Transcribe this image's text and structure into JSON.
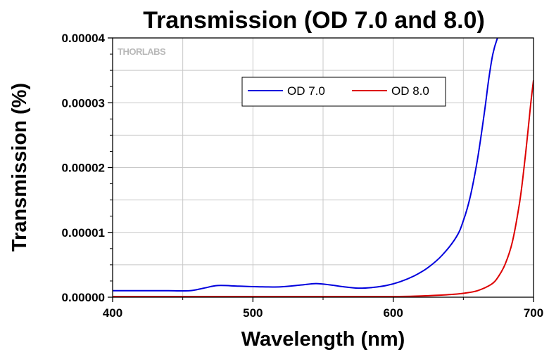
{
  "chart_data": {
    "type": "line",
    "title": "Transmission (OD 7.0 and 8.0)",
    "xlabel": "Wavelength (nm)",
    "ylabel": "Transmission (%)",
    "xlim": [
      400,
      700
    ],
    "ylim": [
      0,
      4e-05
    ],
    "x_ticks": [
      "400",
      "500",
      "600",
      "700"
    ],
    "y_ticks": [
      "0.00000",
      "0.00001",
      "0.00002",
      "0.00003",
      "0.00004"
    ],
    "grid": true,
    "legend_position": "top-center",
    "watermark": "THORLABS",
    "series": [
      {
        "name": "OD 7.0",
        "color": "#0000dd",
        "x": [
          400,
          420,
          440,
          455,
          465,
          475,
          490,
          505,
          520,
          535,
          545,
          555,
          565,
          575,
          585,
          595,
          605,
          615,
          625,
          635,
          645,
          650,
          655,
          660,
          665,
          668,
          671,
          674,
          676
        ],
        "y": [
          1e-06,
          1e-06,
          1e-06,
          1e-06,
          1.4e-06,
          1.8e-06,
          1.7e-06,
          1.6e-06,
          1.6e-06,
          1.9e-06,
          2.1e-06,
          1.9e-06,
          1.6e-06,
          1.4e-06,
          1.5e-06,
          1.8e-06,
          2.4e-06,
          3.3e-06,
          4.6e-06,
          6.5e-06,
          9.3e-06,
          1.18e-05,
          1.56e-05,
          2.12e-05,
          2.85e-05,
          3.35e-05,
          3.75e-05,
          3.98e-05,
          4.05e-05
        ]
      },
      {
        "name": "OD 8.0",
        "color": "#dd0000",
        "x": [
          400,
          450,
          500,
          550,
          600,
          620,
          640,
          650,
          660,
          670,
          675,
          680,
          685,
          690,
          693,
          696,
          698,
          700
        ],
        "y": [
          1e-07,
          1e-07,
          1e-07,
          1e-07,
          1e-07,
          2e-07,
          4e-07,
          6e-07,
          1e-06,
          2e-06,
          3.2e-06,
          5.2e-06,
          8.6e-06,
          1.45e-05,
          1.95e-05,
          2.55e-05,
          2.98e-05,
          3.35e-05
        ]
      }
    ]
  }
}
